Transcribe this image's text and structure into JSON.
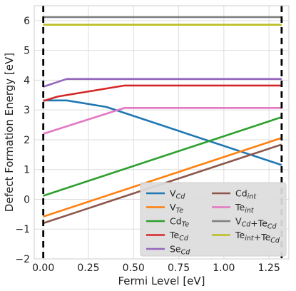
{
  "chart_data": {
    "type": "line",
    "xlabel": "Fermi Level [eV]",
    "ylabel": "Defect Formation Energy [eV]",
    "xlim": [
      -0.05,
      1.36
    ],
    "ylim": [
      -2,
      6.5
    ],
    "xticks": [
      "0.00",
      "0.25",
      "0.50",
      "0.75",
      "1.00",
      "1.25"
    ],
    "xtick_values": [
      0,
      0.25,
      0.5,
      0.75,
      1.0,
      1.25
    ],
    "yticks": [
      "−2",
      "−1",
      "0",
      "1",
      "2",
      "3",
      "4",
      "5",
      "6"
    ],
    "ytick_values": [
      -2,
      -1,
      0,
      1,
      2,
      3,
      4,
      5,
      6
    ],
    "grid": true,
    "legend_placement": "lower-right",
    "band_edges": {
      "values": [
        0.0,
        1.32
      ],
      "style": "dashed",
      "color": "#000000"
    },
    "series": [
      {
        "name": "V",
        "sub": "Cd",
        "color": "#1f77b4",
        "x": [
          0,
          0.13,
          0.35,
          1.32
        ],
        "y": [
          3.32,
          3.32,
          3.1,
          1.15
        ]
      },
      {
        "name": "V",
        "sub": "Te",
        "color": "#ff7f0e",
        "x": [
          0,
          1.32
        ],
        "y": [
          -0.58,
          2.06
        ]
      },
      {
        "name": "Cd",
        "sub": "Te",
        "color": "#2ca02c",
        "x": [
          0,
          1.32
        ],
        "y": [
          0.12,
          2.76
        ]
      },
      {
        "name": "Te",
        "sub": "Cd",
        "color": "#d62728",
        "x": [
          0,
          0.08,
          0.45,
          1.32
        ],
        "y": [
          3.3,
          3.45,
          3.82,
          3.82
        ]
      },
      {
        "name": "Se",
        "sub": "Cd",
        "color": "#9467bd",
        "x": [
          0,
          0.13,
          1.32
        ],
        "y": [
          3.78,
          4.04,
          4.04
        ]
      },
      {
        "name": "Cd",
        "sub": "int",
        "color": "#8c564b",
        "x": [
          0,
          1.32
        ],
        "y": [
          -0.8,
          1.84
        ]
      },
      {
        "name": "Te",
        "sub": "int",
        "color": "#e377c2",
        "x": [
          0,
          0.45,
          1.32
        ],
        "y": [
          2.2,
          3.07,
          3.07
        ]
      },
      {
        "name": "V",
        "sub": "Cd",
        "name2": "+Te",
        "sub2": "Cd",
        "color": "#7f7f7f",
        "x": [
          0,
          1.32
        ],
        "y": [
          6.12,
          6.12
        ]
      },
      {
        "name": "Te",
        "sub": "int",
        "name2": "+Te",
        "sub2": "Cd",
        "color": "#bcbd22",
        "x": [
          0,
          1.32
        ],
        "y": [
          5.86,
          5.86
        ]
      }
    ]
  }
}
